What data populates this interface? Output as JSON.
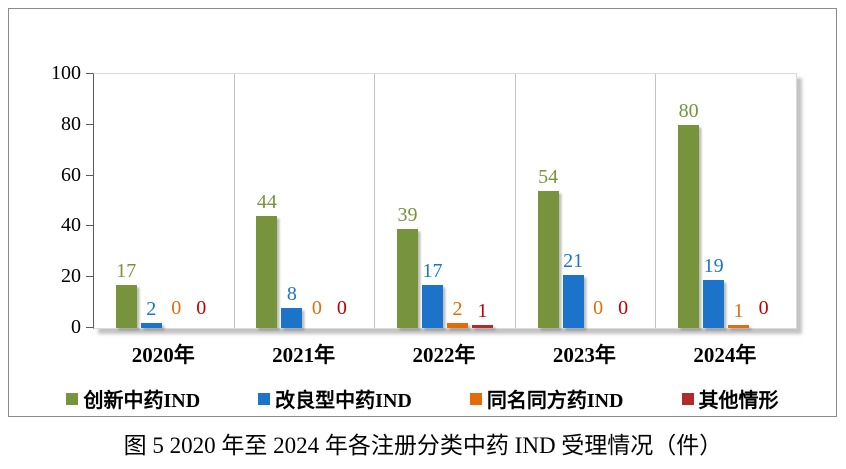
{
  "chart_data": {
    "type": "bar",
    "title": "图 5  2020 年至 2024 年各注册分类中药 IND 受理情况（件）",
    "categories": [
      "2020年",
      "2021年",
      "2022年",
      "2023年",
      "2024年"
    ],
    "series": [
      {
        "name": "创新中药IND",
        "color": "#77933C",
        "label_color": "#77933C",
        "values": [
          17,
          44,
          39,
          54,
          80
        ]
      },
      {
        "name": "改良型中药IND",
        "color": "#1B74C9",
        "label_color": "#1B74C9",
        "values": [
          2,
          8,
          17,
          21,
          19
        ]
      },
      {
        "name": "同名同方药IND",
        "color": "#E36C0A",
        "label_color": "#E36C0A",
        "values": [
          0,
          0,
          2,
          0,
          1
        ]
      },
      {
        "name": "其他情形",
        "color": "#B02B2B",
        "label_color": "#C00000",
        "values": [
          0,
          0,
          1,
          0,
          0
        ]
      }
    ],
    "y_axis": {
      "min": 0,
      "max": 100,
      "step": 20,
      "ticks": [
        100,
        80,
        60,
        40,
        20,
        0
      ]
    },
    "legend_position": "bottom",
    "grid": "vertical-category-separators",
    "xlabel": "",
    "ylabel": ""
  }
}
